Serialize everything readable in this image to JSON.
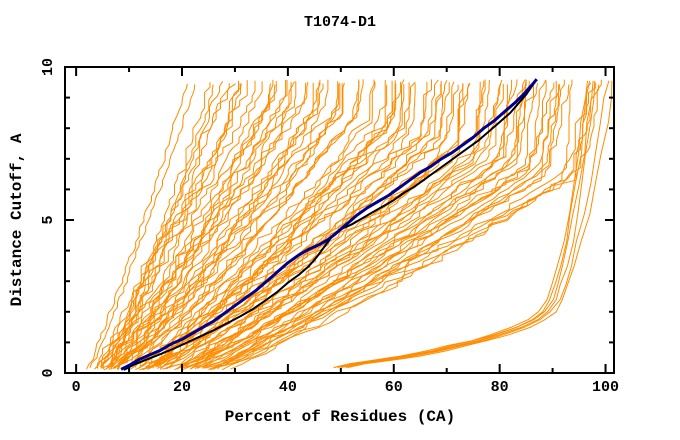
{
  "chart_data": {
    "type": "line",
    "title": "T1074-D1",
    "xlabel": "Percent of Residues (CA)",
    "ylabel": "Distance Cutoff, A",
    "xlim": [
      0,
      100
    ],
    "ylim": [
      0,
      10
    ],
    "xticks_major": [
      0,
      20,
      40,
      60,
      80,
      100
    ],
    "xticks_minor": [
      10,
      30,
      50,
      70,
      90
    ],
    "yticks_major": [
      0,
      5,
      10
    ],
    "yticks_minor": [
      1,
      2,
      3,
      4,
      6,
      7,
      8,
      9
    ],
    "grid": false,
    "legend": null,
    "colors": {
      "background": "#ffffff",
      "frame": "#000000",
      "ensemble_orange": "#ff8c00",
      "highlight_navy": "#00008b",
      "highlight_black": "#000000"
    },
    "series": [
      {
        "name": "predicted-models-ensemble",
        "role": "ensemble",
        "color": "#ff8c00",
        "stroke_width": 1,
        "count": 92,
        "seed": 20210715,
        "x_top_range": [
          21,
          97
        ],
        "x_bottom_range": [
          3.5,
          27.5
        ],
        "y_start": 0.12,
        "y_end": 9.5
      },
      {
        "name": "outlier-models-band",
        "role": "outlier-band",
        "color": "#ff8c00",
        "stroke_width": 1,
        "offsets": [
          -1.6,
          -1.0,
          -0.4,
          0.2,
          0.8,
          1.6
        ],
        "steep_extra_per_unit": [
          0,
          0,
          0,
          0,
          0.25,
          0.35
        ],
        "base_points": [
          [
            50,
            0.18
          ],
          [
            53,
            0.3
          ],
          [
            58,
            0.42
          ],
          [
            63,
            0.55
          ],
          [
            68,
            0.72
          ],
          [
            72,
            0.9
          ],
          [
            76,
            1.05
          ],
          [
            80,
            1.25
          ],
          [
            84,
            1.5
          ],
          [
            87,
            1.75
          ],
          [
            89,
            2.0
          ],
          [
            90.5,
            2.4
          ],
          [
            91.5,
            2.9
          ],
          [
            92.5,
            3.5
          ],
          [
            93.5,
            4.3
          ],
          [
            94.5,
            5.2
          ],
          [
            95.5,
            6.2
          ],
          [
            96.3,
            7.2
          ],
          [
            97,
            8.2
          ],
          [
            97.6,
            9.0
          ],
          [
            98,
            9.55
          ]
        ]
      },
      {
        "name": "highlighted-model-black",
        "role": "highlight",
        "color": "#000000",
        "stroke_width": 2,
        "points": [
          [
            9,
            0.1
          ],
          [
            11,
            0.28
          ],
          [
            13.5,
            0.45
          ],
          [
            16,
            0.62
          ],
          [
            18.5,
            0.8
          ],
          [
            21,
            1.0
          ],
          [
            23.5,
            1.2
          ],
          [
            26,
            1.4
          ],
          [
            28.5,
            1.62
          ],
          [
            31,
            1.85
          ],
          [
            33.5,
            2.1
          ],
          [
            36,
            2.4
          ],
          [
            38,
            2.65
          ],
          [
            40,
            2.95
          ],
          [
            42,
            3.2
          ],
          [
            44,
            3.5
          ],
          [
            45.5,
            3.8
          ],
          [
            47,
            4.15
          ],
          [
            48.5,
            4.5
          ],
          [
            50,
            4.7
          ],
          [
            52,
            4.85
          ],
          [
            54,
            5.05
          ],
          [
            56,
            5.25
          ],
          [
            58,
            5.45
          ],
          [
            60,
            5.65
          ],
          [
            62,
            5.9
          ],
          [
            64,
            6.1
          ],
          [
            66,
            6.35
          ],
          [
            68,
            6.6
          ],
          [
            70,
            6.85
          ],
          [
            72,
            7.1
          ],
          [
            74,
            7.35
          ],
          [
            76,
            7.6
          ],
          [
            78,
            7.9
          ],
          [
            80,
            8.2
          ],
          [
            82,
            8.5
          ],
          [
            83.5,
            8.8
          ],
          [
            85,
            9.1
          ],
          [
            86,
            9.35
          ],
          [
            86.8,
            9.55
          ]
        ]
      },
      {
        "name": "highlighted-model-navy",
        "role": "highlight",
        "color": "#00008b",
        "stroke_width": 3,
        "points": [
          [
            8.5,
            0.12
          ],
          [
            10,
            0.25
          ],
          [
            12,
            0.45
          ],
          [
            14,
            0.6
          ],
          [
            16,
            0.75
          ],
          [
            18,
            0.95
          ],
          [
            20,
            1.1
          ],
          [
            22,
            1.3
          ],
          [
            24,
            1.5
          ],
          [
            26,
            1.7
          ],
          [
            28,
            1.95
          ],
          [
            30,
            2.2
          ],
          [
            32,
            2.45
          ],
          [
            34,
            2.7
          ],
          [
            36,
            3.0
          ],
          [
            38,
            3.3
          ],
          [
            40,
            3.6
          ],
          [
            42,
            3.85
          ],
          [
            44,
            4.05
          ],
          [
            46,
            4.2
          ],
          [
            47.5,
            4.35
          ],
          [
            49,
            4.55
          ],
          [
            51,
            4.85
          ],
          [
            53,
            5.15
          ],
          [
            55,
            5.4
          ],
          [
            57,
            5.6
          ],
          [
            59,
            5.8
          ],
          [
            61,
            6.05
          ],
          [
            63,
            6.3
          ],
          [
            65,
            6.55
          ],
          [
            67,
            6.75
          ],
          [
            69,
            7.0
          ],
          [
            71,
            7.2
          ],
          [
            73,
            7.45
          ],
          [
            75,
            7.7
          ],
          [
            77,
            8.0
          ],
          [
            79,
            8.25
          ],
          [
            81,
            8.55
          ],
          [
            83,
            8.85
          ],
          [
            84.5,
            9.1
          ],
          [
            85.5,
            9.3
          ],
          [
            86.3,
            9.45
          ],
          [
            87,
            9.6
          ]
        ]
      }
    ]
  }
}
